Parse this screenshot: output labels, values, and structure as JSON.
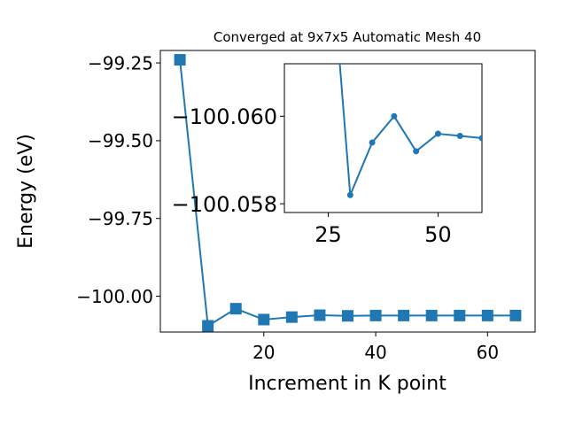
{
  "chart_data": [
    {
      "type": "line",
      "title": "Converged at 9x7x5 Automatic Mesh 40",
      "xlabel": "Increment in K point",
      "ylabel": "Energy (eV)",
      "xlim": [
        1.5,
        68.5
      ],
      "ylim": [
        -100.115,
        -99.21
      ],
      "xticks": [
        20,
        40,
        60
      ],
      "yticks": [
        -99.25,
        -99.5,
        -99.75,
        -100.0
      ],
      "xtick_labels": [
        "20",
        "40",
        "60"
      ],
      "ytick_labels": [
        "−99.25",
        "−99.50",
        "−99.75",
        "−100.00"
      ],
      "grid": false,
      "legend": "none",
      "series": [
        {
          "marker": "square",
          "color": "#1f77b4",
          "x": [
            5,
            10,
            15,
            20,
            25,
            30,
            35,
            40,
            45,
            50,
            55,
            60,
            65
          ],
          "y": [
            -99.24,
            -100.095,
            -100.04,
            -100.075,
            -100.067,
            -100.061,
            -100.063,
            -100.062,
            -100.062,
            -100.062,
            -100.062,
            -100.062,
            -100.062
          ]
        }
      ]
    },
    {
      "type": "line",
      "title": "",
      "inset": true,
      "xlim": [
        15,
        60
      ],
      "ylim": [
        -100.0578,
        -100.0612
      ],
      "xticks": [
        25,
        50
      ],
      "yticks": [
        -100.06,
        -100.058
      ],
      "xtick_labels": [
        "25",
        "50"
      ],
      "ytick_labels": [
        "−100.060",
        "−100.058"
      ],
      "grid": false,
      "legend": "none",
      "series": [
        {
          "marker": "circle",
          "color": "#1f77b4",
          "x": [
            25,
            30,
            35,
            40,
            45,
            50,
            55,
            60,
            65
          ],
          "y": [
            -100.0645,
            -100.0582,
            -100.0594,
            -100.06,
            -100.0592,
            -100.0596,
            -100.05955,
            -100.0595,
            -100.0596
          ]
        }
      ]
    }
  ]
}
